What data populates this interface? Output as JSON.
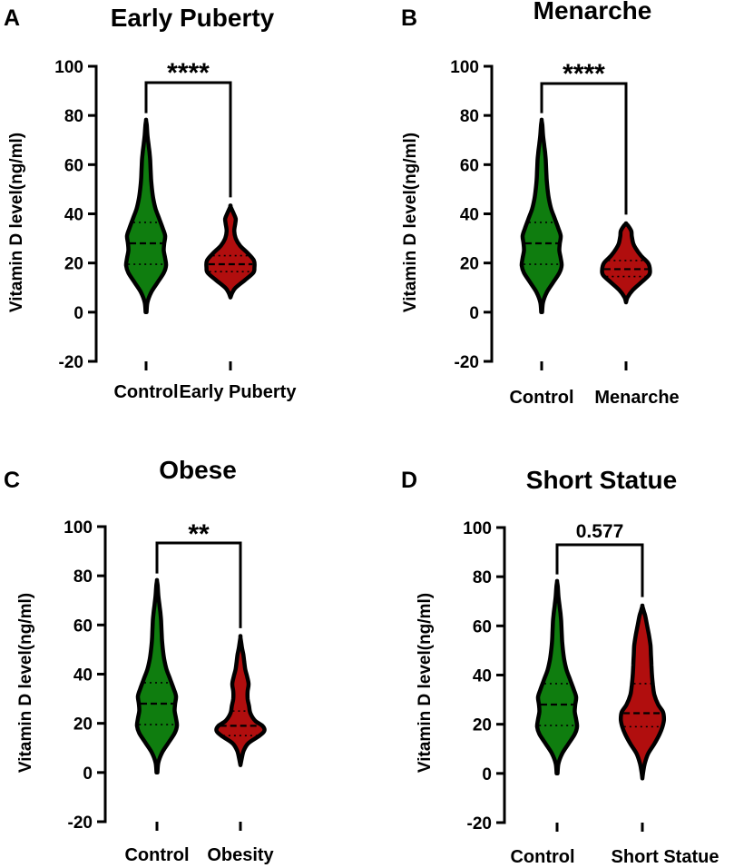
{
  "chart_data": [
    {
      "panel": "A",
      "type": "violin",
      "title": "Early Puberty",
      "ylabel": "Vitamin D level(ng/ml)",
      "ylim": [
        -20,
        100
      ],
      "yticks": [
        -20,
        0,
        20,
        40,
        60,
        80,
        100
      ],
      "categories": [
        "Control",
        "Early Puberty"
      ],
      "colors": [
        "#0f7d0f",
        "#b10e0e"
      ],
      "series": [
        {
          "name": "Control",
          "min": 0,
          "max": 78,
          "q1": 19.5,
          "median": 28,
          "q3": 36.5,
          "density": [
            [
              0,
              0.02
            ],
            [
              4,
              0.06
            ],
            [
              8,
              0.22
            ],
            [
              12,
              0.5
            ],
            [
              16,
              0.78
            ],
            [
              19,
              0.88
            ],
            [
              22,
              0.84
            ],
            [
              25,
              0.78
            ],
            [
              28,
              0.8
            ],
            [
              31,
              0.84
            ],
            [
              34,
              0.74
            ],
            [
              38,
              0.58
            ],
            [
              42,
              0.42
            ],
            [
              46,
              0.32
            ],
            [
              50,
              0.26
            ],
            [
              54,
              0.22
            ],
            [
              58,
              0.2
            ],
            [
              62,
              0.18
            ],
            [
              65,
              0.15
            ],
            [
              68,
              0.11
            ],
            [
              72,
              0.06
            ],
            [
              76,
              0.03
            ],
            [
              78,
              0.0
            ]
          ]
        },
        {
          "name": "Early Puberty",
          "min": 6,
          "max": 43,
          "q1": 16.5,
          "median": 19.5,
          "q3": 23,
          "density": [
            [
              6,
              0.0
            ],
            [
              8,
              0.08
            ],
            [
              10,
              0.22
            ],
            [
              13,
              0.6
            ],
            [
              16,
              0.95
            ],
            [
              18,
              1.0
            ],
            [
              21,
              0.98
            ],
            [
              24,
              0.72
            ],
            [
              27,
              0.4
            ],
            [
              30,
              0.22
            ],
            [
              33,
              0.16
            ],
            [
              36,
              0.2
            ],
            [
              38,
              0.22
            ],
            [
              40,
              0.14
            ],
            [
              43,
              0.0
            ]
          ]
        }
      ],
      "significance": "****"
    },
    {
      "panel": "B",
      "type": "violin",
      "title": "Menarche",
      "ylabel": "Vitamin D level(ng/ml)",
      "ylim": [
        -20,
        100
      ],
      "yticks": [
        -20,
        0,
        20,
        40,
        60,
        80,
        100
      ],
      "categories": [
        "Control",
        "Menarche"
      ],
      "colors": [
        "#0f7d0f",
        "#b10e0e"
      ],
      "series": [
        {
          "name": "Control",
          "min": 0,
          "max": 78,
          "q1": 19.5,
          "median": 28,
          "q3": 36.5,
          "density": [
            [
              0,
              0.02
            ],
            [
              4,
              0.06
            ],
            [
              8,
              0.22
            ],
            [
              12,
              0.5
            ],
            [
              16,
              0.78
            ],
            [
              19,
              0.88
            ],
            [
              22,
              0.84
            ],
            [
              25,
              0.78
            ],
            [
              28,
              0.8
            ],
            [
              31,
              0.84
            ],
            [
              34,
              0.74
            ],
            [
              38,
              0.58
            ],
            [
              42,
              0.42
            ],
            [
              46,
              0.32
            ],
            [
              50,
              0.26
            ],
            [
              54,
              0.22
            ],
            [
              58,
              0.2
            ],
            [
              62,
              0.18
            ],
            [
              65,
              0.15
            ],
            [
              68,
              0.11
            ],
            [
              72,
              0.06
            ],
            [
              76,
              0.03
            ],
            [
              78,
              0.0
            ]
          ]
        },
        {
          "name": "Menarche",
          "min": 4,
          "max": 36,
          "q1": 14.5,
          "median": 17.5,
          "q3": 21,
          "density": [
            [
              4,
              0.0
            ],
            [
              6,
              0.06
            ],
            [
              9,
              0.28
            ],
            [
              12,
              0.62
            ],
            [
              15,
              0.95
            ],
            [
              17,
              1.0
            ],
            [
              20,
              0.92
            ],
            [
              23,
              0.62
            ],
            [
              26,
              0.4
            ],
            [
              28,
              0.3
            ],
            [
              31,
              0.24
            ],
            [
              33,
              0.22
            ],
            [
              35,
              0.1
            ],
            [
              36,
              0.0
            ]
          ]
        }
      ],
      "significance": "****"
    },
    {
      "panel": "C",
      "type": "violin",
      "title": "Obese",
      "ylabel": "Vitamin D level(ng/ml)",
      "ylim": [
        -20,
        100
      ],
      "yticks": [
        -20,
        0,
        20,
        40,
        60,
        80,
        100
      ],
      "categories": [
        "Control",
        "Obesity"
      ],
      "colors": [
        "#0f7d0f",
        "#b10e0e"
      ],
      "series": [
        {
          "name": "Control",
          "min": 0,
          "max": 78,
          "q1": 19.5,
          "median": 28,
          "q3": 36.5,
          "density": [
            [
              0,
              0.02
            ],
            [
              4,
              0.06
            ],
            [
              8,
              0.22
            ],
            [
              12,
              0.5
            ],
            [
              16,
              0.78
            ],
            [
              19,
              0.88
            ],
            [
              22,
              0.84
            ],
            [
              25,
              0.78
            ],
            [
              28,
              0.8
            ],
            [
              31,
              0.84
            ],
            [
              34,
              0.74
            ],
            [
              38,
              0.58
            ],
            [
              42,
              0.42
            ],
            [
              46,
              0.32
            ],
            [
              50,
              0.26
            ],
            [
              54,
              0.22
            ],
            [
              58,
              0.2
            ],
            [
              62,
              0.18
            ],
            [
              65,
              0.15
            ],
            [
              68,
              0.11
            ],
            [
              72,
              0.06
            ],
            [
              76,
              0.03
            ],
            [
              78,
              0.0
            ]
          ]
        },
        {
          "name": "Obesity",
          "min": 3,
          "max": 55,
          "q1": 15,
          "median": 19,
          "q3": 25,
          "density": [
            [
              3,
              0.0
            ],
            [
              6,
              0.06
            ],
            [
              9,
              0.14
            ],
            [
              12,
              0.34
            ],
            [
              15,
              0.8
            ],
            [
              17,
              1.0
            ],
            [
              19,
              0.92
            ],
            [
              21,
              0.62
            ],
            [
              24,
              0.42
            ],
            [
              27,
              0.36
            ],
            [
              30,
              0.3
            ],
            [
              33,
              0.3
            ],
            [
              36,
              0.34
            ],
            [
              39,
              0.28
            ],
            [
              42,
              0.2
            ],
            [
              45,
              0.16
            ],
            [
              48,
              0.12
            ],
            [
              51,
              0.06
            ],
            [
              55,
              0.0
            ]
          ]
        }
      ],
      "significance": "**"
    },
    {
      "panel": "D",
      "type": "violin",
      "title": "Short Statue",
      "ylabel": "Vitamin D level(ng/ml)",
      "ylim": [
        -20,
        100
      ],
      "yticks": [
        -20,
        0,
        20,
        40,
        60,
        80,
        100
      ],
      "categories": [
        "Control",
        "Short Statue"
      ],
      "colors": [
        "#0f7d0f",
        "#b10e0e"
      ],
      "series": [
        {
          "name": "Control",
          "min": 0,
          "max": 78,
          "q1": 19.5,
          "median": 28,
          "q3": 36.5,
          "density": [
            [
              0,
              0.02
            ],
            [
              4,
              0.06
            ],
            [
              8,
              0.22
            ],
            [
              12,
              0.5
            ],
            [
              16,
              0.78
            ],
            [
              19,
              0.88
            ],
            [
              22,
              0.84
            ],
            [
              25,
              0.78
            ],
            [
              28,
              0.8
            ],
            [
              31,
              0.84
            ],
            [
              34,
              0.74
            ],
            [
              38,
              0.58
            ],
            [
              42,
              0.42
            ],
            [
              46,
              0.32
            ],
            [
              50,
              0.26
            ],
            [
              54,
              0.22
            ],
            [
              58,
              0.2
            ],
            [
              62,
              0.18
            ],
            [
              65,
              0.15
            ],
            [
              68,
              0.11
            ],
            [
              72,
              0.06
            ],
            [
              76,
              0.03
            ],
            [
              78,
              0.0
            ]
          ]
        },
        {
          "name": "Short Statue",
          "min": -2,
          "max": 68,
          "q1": 19,
          "median": 24.5,
          "q3": 36.5,
          "density": [
            [
              -2,
              0.0
            ],
            [
              1,
              0.04
            ],
            [
              4,
              0.1
            ],
            [
              8,
              0.24
            ],
            [
              12,
              0.5
            ],
            [
              16,
              0.72
            ],
            [
              19,
              0.84
            ],
            [
              22,
              0.9
            ],
            [
              25,
              0.86
            ],
            [
              28,
              0.66
            ],
            [
              32,
              0.5
            ],
            [
              36,
              0.44
            ],
            [
              40,
              0.4
            ],
            [
              44,
              0.38
            ],
            [
              48,
              0.36
            ],
            [
              52,
              0.34
            ],
            [
              56,
              0.28
            ],
            [
              60,
              0.2
            ],
            [
              64,
              0.12
            ],
            [
              66,
              0.06
            ],
            [
              68,
              0.0
            ]
          ]
        }
      ],
      "significance": "0.577"
    }
  ]
}
